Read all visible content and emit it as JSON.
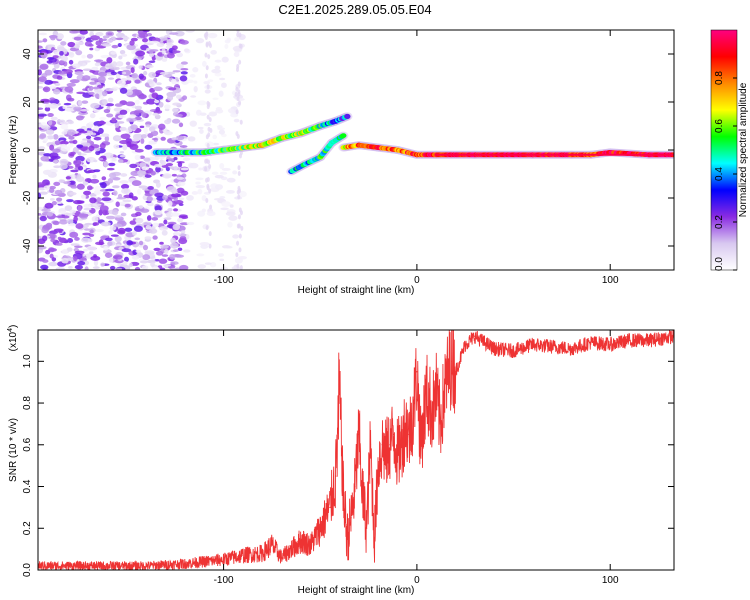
{
  "title": "C2E1.2025.289.05.05.E04",
  "chart_data": [
    {
      "type": "heatmap",
      "name": "spectrogram",
      "xlabel": "Height of straight line (km)",
      "ylabel": "Frequency (Hz)",
      "xlim": [
        -196,
        133
      ],
      "ylim": [
        -50,
        50
      ],
      "xticks": [
        -100,
        0,
        100
      ],
      "xtick_labels": [
        "-100",
        "0",
        "100"
      ],
      "yticks": [
        -40,
        -20,
        0,
        20,
        40
      ],
      "ytick_labels": [
        "-40",
        "-20",
        "0",
        "20",
        "40"
      ],
      "colorbar": {
        "label": "Normalized spectral amplitude",
        "range": [
          0,
          1
        ],
        "ticks": [
          0.0,
          0.2,
          0.4,
          0.6,
          0.8
        ],
        "tick_labels": [
          "0.0",
          "0.2",
          "0.4",
          "0.6",
          "0.8"
        ],
        "colors": [
          "#ffffff",
          "#d8c8f0",
          "#8a2be2",
          "#0000ff",
          "#00ffff",
          "#00ff00",
          "#ffff00",
          "#ff8800",
          "#ff0000",
          "#ff0080"
        ]
      },
      "noise_region_x": [
        -196,
        -120
      ],
      "main_trace": [
        {
          "x": -135,
          "y": -1,
          "v": 0.4
        },
        {
          "x": -120,
          "y": -1,
          "v": 0.45
        },
        {
          "x": -110,
          "y": -1,
          "v": 0.5
        },
        {
          "x": -100,
          "y": 0,
          "v": 0.55
        },
        {
          "x": -90,
          "y": 1,
          "v": 0.6
        },
        {
          "x": -80,
          "y": 2,
          "v": 0.65
        },
        {
          "x": -70,
          "y": 5,
          "v": 0.6
        },
        {
          "x": -60,
          "y": 7,
          "v": 0.6
        },
        {
          "x": -50,
          "y": 10,
          "v": 0.5
        },
        {
          "x": -42,
          "y": 12,
          "v": 0.4
        },
        {
          "x": -36,
          "y": 14,
          "v": 0.35
        }
      ],
      "branch_trace": [
        {
          "x": -65,
          "y": -9,
          "v": 0.4
        },
        {
          "x": -58,
          "y": -6,
          "v": 0.45
        },
        {
          "x": -50,
          "y": -3,
          "v": 0.5
        },
        {
          "x": -44,
          "y": 3,
          "v": 0.5
        },
        {
          "x": -38,
          "y": 6,
          "v": 0.45
        }
      ],
      "flat_trace": [
        {
          "x": -38,
          "y": 1,
          "v": 0.7
        },
        {
          "x": -30,
          "y": 2,
          "v": 0.8
        },
        {
          "x": -20,
          "y": 1,
          "v": 0.85
        },
        {
          "x": -10,
          "y": 0,
          "v": 0.8
        },
        {
          "x": 0,
          "y": -2,
          "v": 0.85
        },
        {
          "x": 10,
          "y": -2,
          "v": 0.9
        },
        {
          "x": 30,
          "y": -2,
          "v": 0.95
        },
        {
          "x": 60,
          "y": -2,
          "v": 0.95
        },
        {
          "x": 80,
          "y": -2,
          "v": 0.9
        },
        {
          "x": 90,
          "y": -2,
          "v": 0.85
        },
        {
          "x": 100,
          "y": -1,
          "v": 0.9
        },
        {
          "x": 120,
          "y": -2,
          "v": 0.95
        },
        {
          "x": 133,
          "y": -2,
          "v": 0.95
        }
      ]
    },
    {
      "type": "line",
      "name": "snr",
      "xlabel": "Height of straight line (km)",
      "ylabel": "SNR (10 * v/v)",
      "y_scale_label": "(x10",
      "y_scale_exponent": "4",
      "xlim": [
        -196,
        133
      ],
      "ylim": [
        0.0,
        1.15
      ],
      "xticks": [
        -100,
        0,
        100
      ],
      "xtick_labels": [
        "-100",
        "0",
        "100"
      ],
      "yticks": [
        0.0,
        0.2,
        0.4,
        0.6,
        0.8,
        1.0
      ],
      "ytick_labels": [
        "0.0",
        "0.2",
        "0.4",
        "0.6",
        "0.8",
        "1.0"
      ],
      "color": "#ee3333",
      "series": [
        {
          "name": "SNR",
          "x": [
            -196,
            -180,
            -160,
            -140,
            -120,
            -110,
            -100,
            -90,
            -80,
            -75,
            -70,
            -65,
            -60,
            -55,
            -50,
            -45,
            -42,
            -40,
            -38,
            -36,
            -34,
            -32,
            -30,
            -28,
            -26,
            -24,
            -22,
            -20,
            -18,
            -16,
            -14,
            -12,
            -10,
            -8,
            -6,
            -4,
            -2,
            0,
            2,
            5,
            8,
            10,
            12,
            15,
            18,
            20,
            25,
            30,
            40,
            50,
            60,
            70,
            80,
            90,
            100,
            110,
            120,
            133
          ],
          "y": [
            0.02,
            0.02,
            0.02,
            0.02,
            0.03,
            0.04,
            0.05,
            0.07,
            0.08,
            0.12,
            0.06,
            0.1,
            0.14,
            0.12,
            0.2,
            0.3,
            0.45,
            0.85,
            0.35,
            0.15,
            0.25,
            0.4,
            0.65,
            0.35,
            0.2,
            0.6,
            0.15,
            0.5,
            0.6,
            0.55,
            0.6,
            0.65,
            0.55,
            0.6,
            0.7,
            0.65,
            0.75,
            0.95,
            0.6,
            0.85,
            0.75,
            0.85,
            0.7,
            0.9,
            1.0,
            0.95,
            1.08,
            1.12,
            1.06,
            1.05,
            1.08,
            1.07,
            1.06,
            1.09,
            1.08,
            1.1,
            1.1,
            1.12
          ]
        }
      ]
    }
  ]
}
